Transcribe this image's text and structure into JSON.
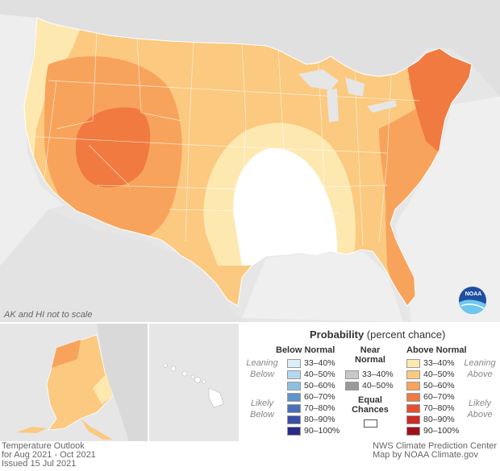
{
  "map": {
    "scale_note": "AK and HI not to scale",
    "logo_text": "NOAA"
  },
  "legend": {
    "title_bold": "Probability",
    "title_rest": " (percent chance)",
    "below_header": "Below Normal",
    "near_header_1": "Near",
    "near_header_2": "Normal",
    "above_header": "Above Normal",
    "leaning_below_1": "Leaning",
    "leaning_below_2": "Below",
    "likely_below_1": "Likely",
    "likely_below_2": "Below",
    "leaning_above_1": "Leaning",
    "leaning_above_2": "Above",
    "likely_above_1": "Likely",
    "likely_above_2": "Above",
    "equal_1": "Equal",
    "equal_2": "Chances",
    "below": [
      {
        "label": "33–40%",
        "color": "#dbeef9"
      },
      {
        "label": "40–50%",
        "color": "#b4d8ee"
      },
      {
        "label": "50–60%",
        "color": "#8ebfe0"
      },
      {
        "label": "60–70%",
        "color": "#5e93cc"
      },
      {
        "label": "70–80%",
        "color": "#4a70b8"
      },
      {
        "label": "80–90%",
        "color": "#3a4ea5"
      },
      {
        "label": "90–100%",
        "color": "#2a2a8a"
      }
    ],
    "near": [
      {
        "label": "33–40%",
        "color": "#c8c8c8"
      },
      {
        "label": "40–50%",
        "color": "#9a9a9a"
      }
    ],
    "above": [
      {
        "label": "33–40%",
        "color": "#fde8b0"
      },
      {
        "label": "40–50%",
        "color": "#fbc97f"
      },
      {
        "label": "50–60%",
        "color": "#f8a35c"
      },
      {
        "label": "60–70%",
        "color": "#f07a40"
      },
      {
        "label": "70–80%",
        "color": "#e44f30"
      },
      {
        "label": "80–90%",
        "color": "#cc2a25"
      },
      {
        "label": "90–100%",
        "color": "#a0101c"
      }
    ]
  },
  "footer": {
    "left_1": "Temperature Outlook",
    "left_2": "for Aug 2021 - Oct 2021",
    "left_3": "Issued 15 Jul 2021",
    "right_1": "NWS Climate Prediction Center",
    "right_2": "Map by NOAA Climate.gov"
  }
}
